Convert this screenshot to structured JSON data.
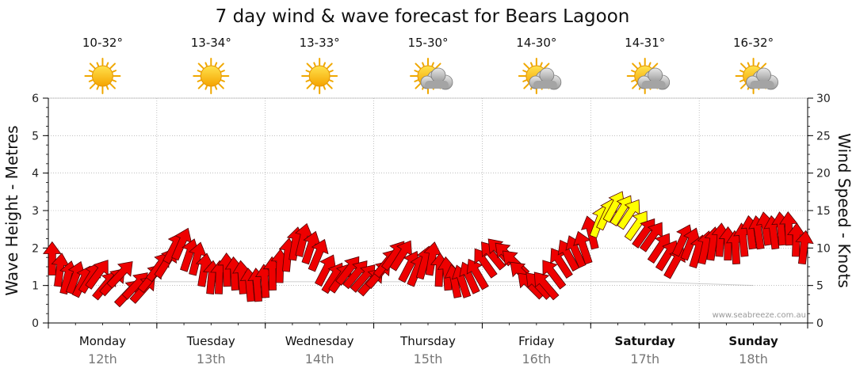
{
  "chart_data": {
    "type": "line",
    "title": "7 day wind & wave forecast for Bears Lagoon",
    "ylabel_left": "Wave Height - Metres",
    "ylabel_right": "Wind Speed - Knots",
    "ylim_left": [
      0,
      6
    ],
    "ylim_right": [
      0,
      30
    ],
    "yticks_left": [
      "0",
      "1",
      "2",
      "3",
      "4",
      "5",
      "6"
    ],
    "yticks_right": [
      "0",
      "5",
      "10",
      "15",
      "20",
      "25",
      "30"
    ],
    "grid": true,
    "watermark": "www.seabreeze.com.au",
    "days": [
      {
        "name": "Monday",
        "date": "12th",
        "temp": "10-32°",
        "weather": "sunny-icon",
        "bold": false
      },
      {
        "name": "Tuesday",
        "date": "13th",
        "temp": "13-34°",
        "weather": "sunny-icon",
        "bold": false
      },
      {
        "name": "Wednesday",
        "date": "14th",
        "temp": "13-33°",
        "weather": "sunny-icon",
        "bold": false
      },
      {
        "name": "Thursday",
        "date": "15th",
        "temp": "15-30°",
        "weather": "partly-cloudy-icon",
        "bold": false
      },
      {
        "name": "Friday",
        "date": "16th",
        "temp": "14-30°",
        "weather": "partly-cloudy-icon",
        "bold": false
      },
      {
        "name": "Saturday",
        "date": "17th",
        "temp": "14-31°",
        "weather": "partly-cloudy-icon",
        "bold": true
      },
      {
        "name": "Sunday",
        "date": "18th",
        "temp": "16-32°",
        "weather": "partly-cloudy-icon",
        "bold": true
      }
    ],
    "series": [
      {
        "name": "wind",
        "unit": "knots",
        "colors": {
          "strong": "#ee0000",
          "gusty": "#ffff00",
          "outline": "#550000"
        },
        "x_day": [
          0.0,
          0.07,
          0.14,
          0.21,
          0.28,
          0.35,
          0.42,
          0.49,
          0.56,
          0.63,
          0.7,
          0.77,
          0.84,
          0.91,
          0.98,
          1.05,
          1.12,
          1.19,
          1.26,
          1.33,
          1.4,
          1.47,
          1.54,
          1.61,
          1.68,
          1.75,
          1.82,
          1.89,
          1.96,
          2.03,
          2.1,
          2.17,
          2.24,
          2.31,
          2.38,
          2.45,
          2.52,
          2.59,
          2.66,
          2.73,
          2.8,
          2.87,
          2.94,
          3.01,
          3.08,
          3.15,
          3.22,
          3.29,
          3.36,
          3.43,
          3.5,
          3.57,
          3.64,
          3.71,
          3.78,
          3.85,
          3.92,
          3.99,
          4.06,
          4.13,
          4.2,
          4.27,
          4.34,
          4.41,
          4.48,
          4.55,
          4.62,
          4.69,
          4.76,
          4.83,
          4.9,
          4.97,
          5.04,
          5.11,
          5.18,
          5.25,
          5.32,
          5.39,
          5.46,
          5.53,
          5.6,
          5.67,
          5.74,
          5.81,
          5.88,
          5.95,
          6.02,
          6.09,
          6.16,
          6.23,
          6.3,
          6.37,
          6.44,
          6.51,
          6.58,
          6.65,
          6.72,
          6.79,
          6.86,
          6.93
        ],
        "speed": [
          8.5,
          7,
          6,
          6,
          5.5,
          6,
          6.5,
          5,
          5.5,
          6.5,
          4,
          5,
          4.5,
          6,
          7.5,
          8,
          10,
          10.5,
          9,
          8.5,
          7,
          6,
          6,
          7,
          6.5,
          6,
          5,
          5,
          5.5,
          6.5,
          7.5,
          9,
          10.5,
          11,
          10,
          9,
          7,
          6,
          6,
          7,
          6.5,
          6,
          5.5,
          6.5,
          8,
          9,
          9,
          7.5,
          7,
          8,
          8.5,
          7,
          6.5,
          5.5,
          5.5,
          6,
          6.5,
          8,
          9,
          9.5,
          9,
          8,
          6.5,
          5,
          5,
          5,
          6.5,
          8,
          9,
          9.5,
          10,
          12,
          13.5,
          14.5,
          15.5,
          15,
          14.5,
          13,
          12,
          11.5,
          10,
          9,
          8,
          11,
          10.5,
          9.5,
          10,
          10.5,
          11,
          10.5,
          10,
          11,
          12,
          12,
          12.5,
          12,
          12.5,
          12.5,
          11,
          10
        ]
      },
      {
        "name": "wave",
        "unit": "metres",
        "values": [
          1.1,
          1.1,
          1.1,
          1.1,
          1.1,
          1.1,
          1.0
        ]
      }
    ]
  }
}
